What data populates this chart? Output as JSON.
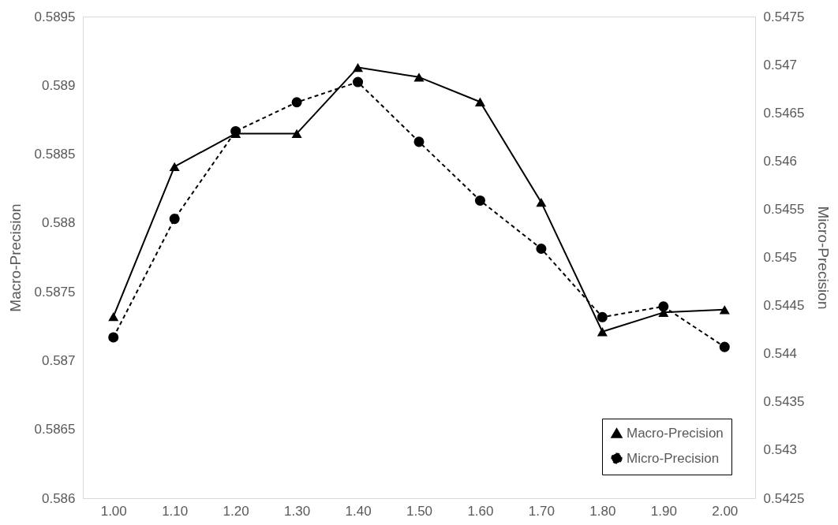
{
  "chart_data": {
    "type": "line",
    "ylabel": "Macro-Precision",
    "y2label": "Micro-Precision",
    "categories": [
      "1.00",
      "1.10",
      "1.20",
      "1.30",
      "1.40",
      "1.50",
      "1.60",
      "1.70",
      "1.80",
      "1.90",
      "2.00"
    ],
    "series": [
      {
        "name": "Macro-Precision",
        "color": "#000000",
        "marker": "triangle",
        "line_style": "solid",
        "axis": "y",
        "values": [
          0.58732,
          0.58841,
          0.58865,
          0.58865,
          0.58913,
          0.58906,
          0.58888,
          0.58815,
          0.58721,
          0.58735,
          0.58737
        ]
      },
      {
        "name": "Micro-Precision",
        "color": "#000000",
        "marker": "circle",
        "line_style": "dashed",
        "axis": "y2",
        "values": [
          0.54417,
          0.5454,
          0.54631,
          0.54661,
          0.54682,
          0.5462,
          0.54559,
          0.54509,
          0.54438,
          0.54449,
          0.54407
        ]
      }
    ],
    "ylim": [
      0.586,
      0.5895
    ],
    "yticks": [
      0.586,
      0.5865,
      0.587,
      0.5875,
      0.588,
      0.5885,
      0.589,
      0.5895
    ],
    "y2lim": [
      0.5425,
      0.5475
    ],
    "y2ticks": [
      0.5425,
      0.543,
      0.5435,
      0.544,
      0.5445,
      0.545,
      0.5455,
      0.546,
      0.5465,
      0.547,
      0.5475
    ],
    "grid": false,
    "legend": "bottom right"
  }
}
